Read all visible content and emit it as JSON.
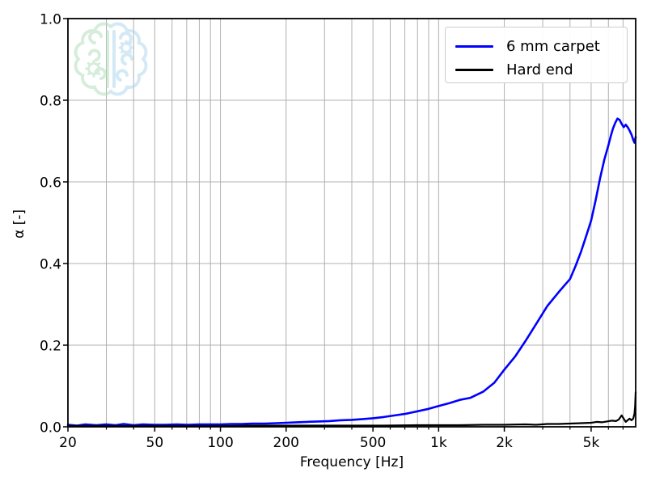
{
  "figure": {
    "background": "#ffffff",
    "grid_color": "#b0b0b0",
    "spine_color": "#000000",
    "tick_label_color": "#000000"
  },
  "watermark": {
    "icon": "brain-gears-logo",
    "left_color": "#aedcb9",
    "right_color": "#a9d4ec",
    "opacity": 0.5
  },
  "chart_data": {
    "type": "line",
    "title": "",
    "xlabel": "Frequency [Hz]",
    "ylabel": "α [-]",
    "x_scale": "log",
    "xlim": [
      20,
      8000
    ],
    "ylim": [
      0.0,
      1.0
    ],
    "grid": true,
    "legend_position": "upper right",
    "x_ticks": [
      {
        "f": 20,
        "label": "20"
      },
      {
        "f": 50,
        "label": "50"
      },
      {
        "f": 100,
        "label": "100"
      },
      {
        "f": 200,
        "label": "200"
      },
      {
        "f": 500,
        "label": "500"
      },
      {
        "f": 1000,
        "label": "1k"
      },
      {
        "f": 2000,
        "label": "2k"
      },
      {
        "f": 5000,
        "label": "5k"
      }
    ],
    "x_minor_ticks": [
      30,
      40,
      60,
      70,
      80,
      90,
      300,
      400,
      600,
      700,
      800,
      900,
      3000,
      4000,
      6000,
      7000
    ],
    "y_ticks": [
      {
        "v": 0.0,
        "label": "0.0"
      },
      {
        "v": 0.2,
        "label": "0.2"
      },
      {
        "v": 0.4,
        "label": "0.4"
      },
      {
        "v": 0.6,
        "label": "0.6"
      },
      {
        "v": 0.8,
        "label": "0.8"
      },
      {
        "v": 1.0,
        "label": "1.0"
      }
    ],
    "series": [
      {
        "name": "6 mm carpet",
        "color": "#0000ff",
        "line_width": 2.6,
        "points": [
          [
            20,
            0.005
          ],
          [
            22,
            0.003
          ],
          [
            24,
            0.006
          ],
          [
            27,
            0.004
          ],
          [
            30,
            0.006
          ],
          [
            33,
            0.004
          ],
          [
            36,
            0.007
          ],
          [
            40,
            0.004
          ],
          [
            44,
            0.006
          ],
          [
            50,
            0.005
          ],
          [
            56,
            0.005
          ],
          [
            63,
            0.006
          ],
          [
            71,
            0.005
          ],
          [
            80,
            0.006
          ],
          [
            90,
            0.006
          ],
          [
            100,
            0.006
          ],
          [
            112,
            0.007
          ],
          [
            125,
            0.007
          ],
          [
            140,
            0.008
          ],
          [
            160,
            0.008
          ],
          [
            180,
            0.009
          ],
          [
            200,
            0.01
          ],
          [
            224,
            0.011
          ],
          [
            250,
            0.012
          ],
          [
            280,
            0.013
          ],
          [
            315,
            0.014
          ],
          [
            355,
            0.016
          ],
          [
            400,
            0.017
          ],
          [
            450,
            0.019
          ],
          [
            500,
            0.021
          ],
          [
            560,
            0.024
          ],
          [
            630,
            0.028
          ],
          [
            710,
            0.032
          ],
          [
            800,
            0.038
          ],
          [
            900,
            0.044
          ],
          [
            1000,
            0.051
          ],
          [
            1120,
            0.058
          ],
          [
            1250,
            0.066
          ],
          [
            1400,
            0.071
          ],
          [
            1600,
            0.086
          ],
          [
            1800,
            0.108
          ],
          [
            2000,
            0.14
          ],
          [
            2240,
            0.172
          ],
          [
            2500,
            0.21
          ],
          [
            2800,
            0.252
          ],
          [
            3150,
            0.296
          ],
          [
            3550,
            0.33
          ],
          [
            4000,
            0.362
          ],
          [
            4250,
            0.395
          ],
          [
            4500,
            0.43
          ],
          [
            4750,
            0.468
          ],
          [
            5000,
            0.505
          ],
          [
            5250,
            0.556
          ],
          [
            5500,
            0.61
          ],
          [
            5750,
            0.655
          ],
          [
            6000,
            0.69
          ],
          [
            6150,
            0.712
          ],
          [
            6300,
            0.731
          ],
          [
            6450,
            0.745
          ],
          [
            6600,
            0.755
          ],
          [
            6750,
            0.752
          ],
          [
            6900,
            0.742
          ],
          [
            7050,
            0.734
          ],
          [
            7200,
            0.74
          ],
          [
            7350,
            0.734
          ],
          [
            7500,
            0.726
          ],
          [
            7650,
            0.716
          ],
          [
            7800,
            0.703
          ],
          [
            7900,
            0.696
          ],
          [
            8000,
            0.71
          ]
        ]
      },
      {
        "name": "Hard end",
        "color": "#000000",
        "line_width": 2.2,
        "points": [
          [
            20,
            0.002
          ],
          [
            30,
            0.002
          ],
          [
            40,
            0.002
          ],
          [
            50,
            0.002
          ],
          [
            70,
            0.002
          ],
          [
            100,
            0.002
          ],
          [
            140,
            0.003
          ],
          [
            200,
            0.003
          ],
          [
            280,
            0.003
          ],
          [
            400,
            0.003
          ],
          [
            560,
            0.003
          ],
          [
            800,
            0.004
          ],
          [
            1000,
            0.004
          ],
          [
            1250,
            0.004
          ],
          [
            1600,
            0.005
          ],
          [
            2000,
            0.005
          ],
          [
            2500,
            0.006
          ],
          [
            2800,
            0.005
          ],
          [
            3150,
            0.007
          ],
          [
            3550,
            0.007
          ],
          [
            4000,
            0.008
          ],
          [
            4500,
            0.009
          ],
          [
            5000,
            0.01
          ],
          [
            5300,
            0.012
          ],
          [
            5600,
            0.011
          ],
          [
            5900,
            0.013
          ],
          [
            6200,
            0.015
          ],
          [
            6500,
            0.014
          ],
          [
            6700,
            0.018
          ],
          [
            6900,
            0.028
          ],
          [
            7050,
            0.02
          ],
          [
            7200,
            0.012
          ],
          [
            7350,
            0.016
          ],
          [
            7500,
            0.02
          ],
          [
            7650,
            0.016
          ],
          [
            7800,
            0.02
          ],
          [
            7900,
            0.032
          ],
          [
            7950,
            0.05
          ],
          [
            8000,
            0.085
          ]
        ]
      }
    ]
  }
}
